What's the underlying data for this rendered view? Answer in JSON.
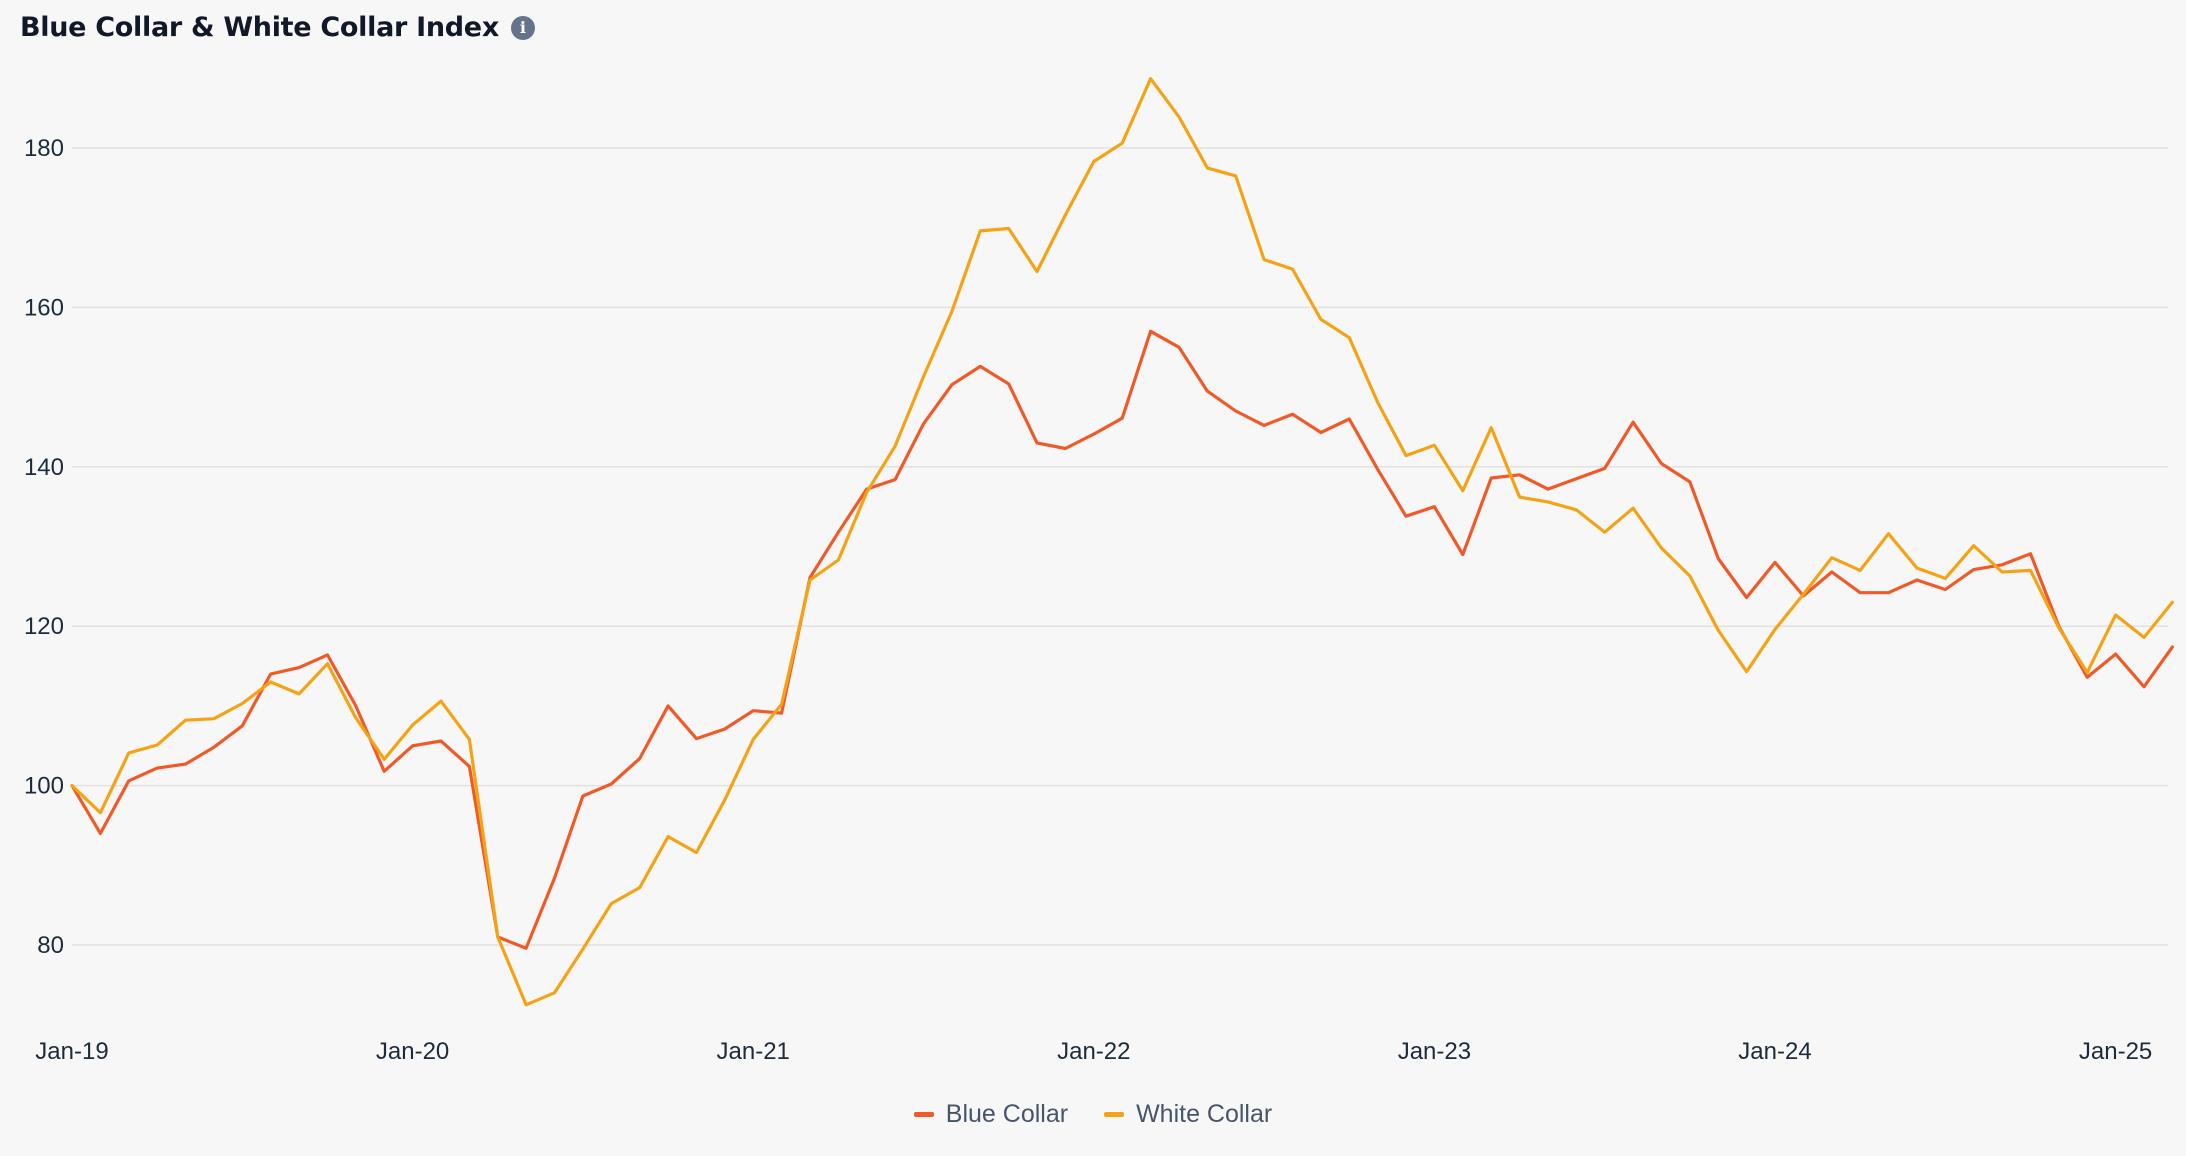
{
  "header": {
    "title": "Blue Collar & White Collar Index",
    "info_icon": "info-icon"
  },
  "colors": {
    "background": "#f7f7f7",
    "grid": "#e2e2e2",
    "blue_collar": "#f05a28",
    "white_collar": "#f5a316"
  },
  "chart_data": {
    "type": "line",
    "title": "Blue Collar & White Collar Index",
    "xlabel": "",
    "ylabel": "",
    "x_tick_labels": [
      "Jan-19",
      "Jan-20",
      "Jan-21",
      "Jan-22",
      "Jan-23",
      "Jan-24",
      "Jan-25"
    ],
    "x_start": "Jan-19",
    "x_step": "month",
    "y_ticks": [
      80,
      100,
      120,
      140,
      160,
      180
    ],
    "ylim": [
      70,
      190
    ],
    "grid": true,
    "legend_position": "bottom-center",
    "series": [
      {
        "name": "Blue Collar",
        "color": "#f05a28",
        "values": [
          100,
          94,
          100.6,
          102.2,
          102.7,
          104.8,
          107.5,
          114,
          114.8,
          116.4,
          110,
          101.8,
          105,
          105.6,
          102.4,
          81,
          79.6,
          88.4,
          98.7,
          100.2,
          103.4,
          110,
          105.9,
          107.1,
          109.4,
          109.1,
          126.1,
          131.8,
          137.2,
          138.4,
          145.4,
          150.3,
          152.6,
          150.4,
          143,
          142.3,
          144.1,
          146.1,
          157,
          155,
          149.5,
          147,
          145.2,
          146.6,
          144.3,
          146,
          139.7,
          133.8,
          135,
          129,
          138.6,
          139,
          137.2,
          138.5,
          139.8,
          145.6,
          140.4,
          138.1,
          128.5,
          123.6,
          128,
          123.8,
          126.8,
          124.2,
          124.2,
          125.8,
          124.6,
          127.1,
          127.7,
          129.1,
          120,
          113.6,
          116.5,
          112.4,
          117.4
        ]
      },
      {
        "name": "White Collar",
        "color": "#f5a316",
        "values": [
          100,
          96.6,
          104.1,
          105.1,
          108.2,
          108.4,
          110.3,
          113,
          111.5,
          115.3,
          108.5,
          103.3,
          107.6,
          110.6,
          105.8,
          81,
          72.5,
          74,
          79.5,
          85.2,
          87.2,
          93.6,
          91.6,
          98.2,
          105.8,
          110.2,
          125.8,
          128.3,
          136.8,
          142.6,
          151.3,
          159.5,
          169.6,
          169.9,
          164.5,
          171.6,
          178.3,
          180.6,
          188.7,
          183.9,
          177.5,
          176.5,
          166,
          164.8,
          158.5,
          156.2,
          148.1,
          141.4,
          142.7,
          137,
          144.9,
          136.2,
          135.6,
          134.6,
          131.8,
          134.8,
          129.8,
          126.3,
          119.5,
          114.3,
          119.6,
          124,
          128.6,
          127,
          131.6,
          127.3,
          126,
          130.1,
          126.8,
          127,
          119.8,
          114.2,
          121.4,
          118.6,
          123
        ]
      }
    ]
  },
  "legend": {
    "items": [
      {
        "label": "Blue Collar",
        "color": "#f05a28"
      },
      {
        "label": "White Collar",
        "color": "#f5a316"
      }
    ]
  }
}
